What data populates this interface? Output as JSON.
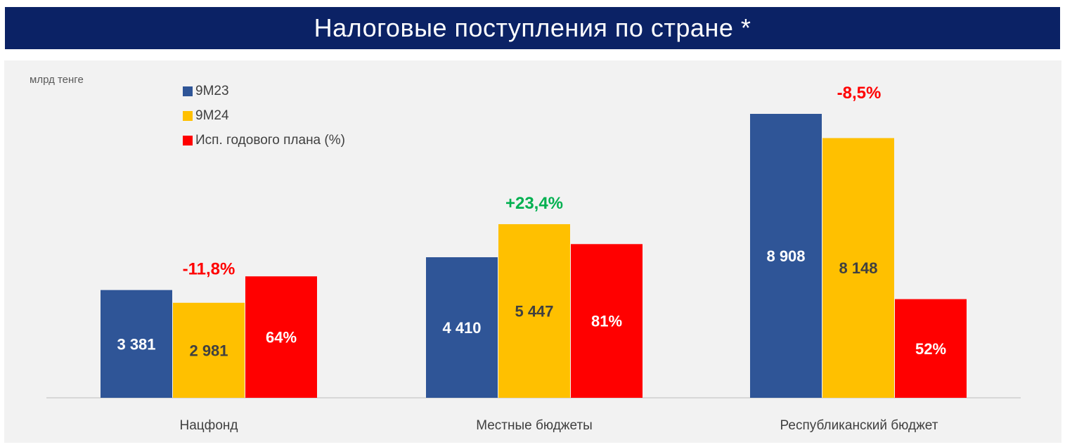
{
  "title": "Налоговые поступления по стране *",
  "chart_data": {
    "type": "bar",
    "unit_label": "млрд тенге",
    "categories": [
      "Нацфонд",
      "Местные бюджеты",
      "Республиканский бюджет"
    ],
    "series": [
      {
        "name": "9M23",
        "values": [
          3381,
          4410,
          8908
        ],
        "labels": [
          "3 381",
          "4 410",
          "8 908"
        ],
        "color": "#2f5597"
      },
      {
        "name": "9M24",
        "values": [
          2981,
          5447,
          8148
        ],
        "labels": [
          "2 981",
          "5 447",
          "8 148"
        ],
        "color": "#ffc000"
      },
      {
        "name": "Исп. годового плана (%)",
        "values": [
          64,
          81,
          52
        ],
        "labels": [
          "64%",
          "81%",
          "52%"
        ],
        "color": "#ff0000"
      }
    ],
    "changes": [
      {
        "text": "-11,8%",
        "color": "#ff0000"
      },
      {
        "text": "+23,4%",
        "color": "#00b050"
      },
      {
        "text": "-8,5%",
        "color": "#ff0000"
      }
    ],
    "legend_position": "top-left",
    "grid": false
  }
}
